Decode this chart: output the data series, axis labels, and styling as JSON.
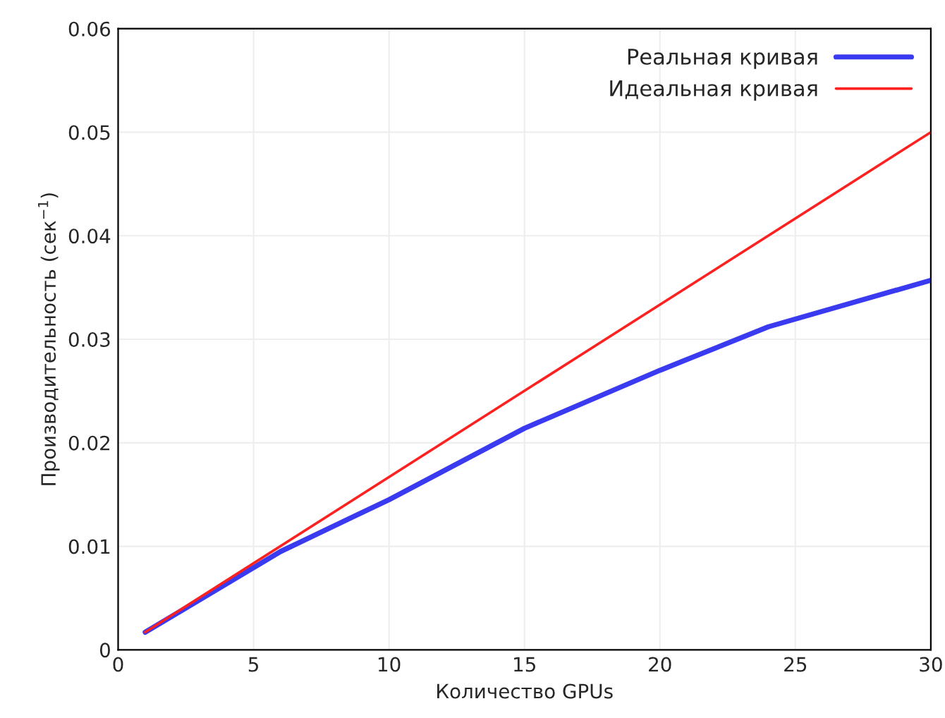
{
  "chart_data": {
    "type": "line",
    "xlabel": "Количество GPUs",
    "ylabel": "Производительность (сек$^{−1}$)",
    "series": [
      {
        "name": "Реальная кривая",
        "color": "#3a3af0",
        "x": [
          1,
          6,
          10,
          15,
          20,
          24,
          30
        ],
        "values": [
          0.0017,
          0.0095,
          0.0145,
          0.0214,
          0.027,
          0.0312,
          0.0357
        ]
      },
      {
        "name": "Идеальная кривая",
        "color": "#ff2020",
        "x": [
          1,
          30
        ],
        "values": [
          0.0017,
          0.05
        ]
      }
    ],
    "xlim": [
      0,
      30
    ],
    "xticks": [
      0,
      5,
      10,
      15,
      20,
      25,
      30
    ],
    "ylim": [
      0,
      0.06
    ],
    "yticks": [
      {
        "value": 0,
        "label": "0"
      },
      0.01,
      0.02,
      0.03,
      0.04,
      0.05,
      0.06
    ],
    "grid": true,
    "legend": "top right",
    "marker": "none",
    "line_style": "solid"
  }
}
